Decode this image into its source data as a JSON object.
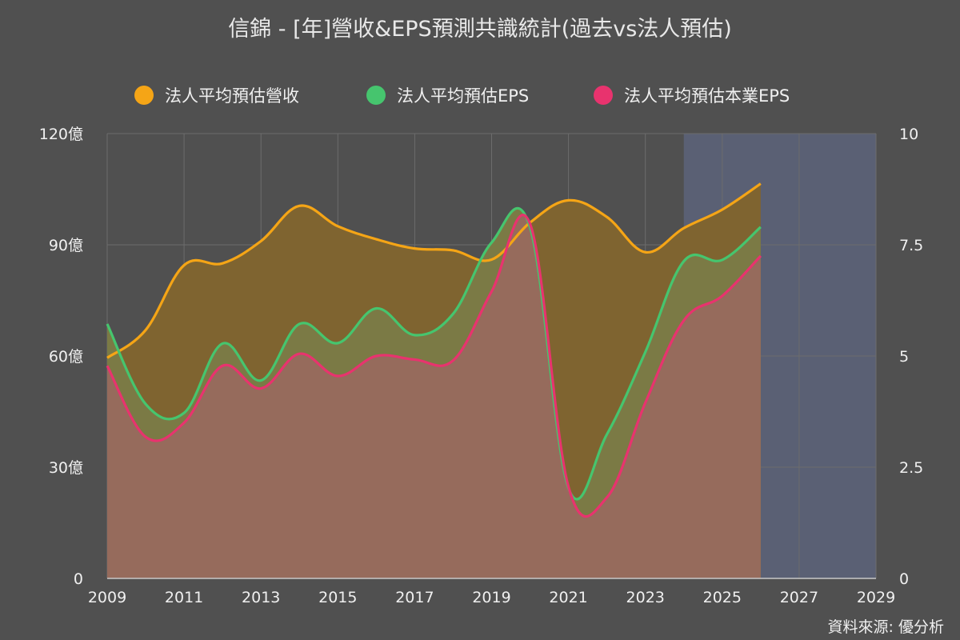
{
  "page": {
    "title": "信錦 - [年]營收&EPS預測共識統計(過去vs法人預估)",
    "source": "資料來源: 優分析"
  },
  "legend": [
    {
      "label": "法人平均預估營收",
      "color": "#f5a516"
    },
    {
      "label": "法人平均預估EPS",
      "color": "#46c56e"
    },
    {
      "label": "法人平均預估本業EPS",
      "color": "#e8336e"
    }
  ],
  "chart_data": {
    "type": "area",
    "x_ticks": [
      "2009",
      "2011",
      "2013",
      "2015",
      "2017",
      "2019",
      "2021",
      "2023",
      "2025",
      "2027",
      "2029"
    ],
    "xlim": [
      2009,
      2029
    ],
    "y_left": {
      "ticks": [
        "0",
        "30億",
        "60億",
        "90億",
        "120億"
      ],
      "lim": [
        0,
        120
      ],
      "unit": "億"
    },
    "y_right": {
      "ticks": [
        "0",
        "2.5",
        "5",
        "7.5",
        "10"
      ],
      "lim": [
        0,
        10
      ]
    },
    "forecast_region": {
      "x_start": 2024,
      "x_end": 2029,
      "color": "#5a6074"
    },
    "grid": true,
    "legend_position": "top",
    "series": [
      {
        "name": "法人平均預估營收",
        "axis": "left",
        "color": "#f5a516",
        "fill": "#7f6430",
        "x": [
          2009,
          2010,
          2011,
          2012,
          2013,
          2014,
          2015,
          2016,
          2017,
          2018,
          2019,
          2020,
          2021,
          2022,
          2023,
          2024,
          2025,
          2026
        ],
        "values": [
          59.5,
          67,
          84.5,
          85,
          91,
          100.5,
          95,
          91.5,
          89,
          88.5,
          86,
          96,
          102,
          97.5,
          88,
          94.5,
          99.5,
          106.5
        ]
      },
      {
        "name": "法人平均預估EPS",
        "axis": "right",
        "color": "#46c56e",
        "fill": "#7b7a45",
        "x": [
          2009,
          2010,
          2011,
          2012,
          2013,
          2014,
          2015,
          2016,
          2017,
          2018,
          2019,
          2020,
          2021,
          2022,
          2023,
          2024,
          2025,
          2026
        ],
        "values": [
          5.72,
          3.92,
          3.72,
          5.28,
          4.45,
          5.72,
          5.29,
          6.07,
          5.47,
          5.95,
          7.55,
          7.89,
          2.03,
          3.24,
          5.09,
          7.13,
          7.16,
          7.9
        ]
      },
      {
        "name": "法人平均預估本業EPS",
        "axis": "right",
        "color": "#e8336e",
        "fill": "#966b5c",
        "x": [
          2009,
          2010,
          2011,
          2012,
          2013,
          2014,
          2015,
          2016,
          2017,
          2018,
          2019,
          2020,
          2021,
          2022,
          2023,
          2024,
          2025,
          2026
        ],
        "values": [
          4.78,
          3.18,
          3.5,
          4.78,
          4.27,
          5.05,
          4.55,
          5.0,
          4.92,
          4.9,
          6.45,
          7.97,
          2.06,
          1.82,
          3.95,
          5.8,
          6.35,
          7.25
        ]
      }
    ]
  }
}
